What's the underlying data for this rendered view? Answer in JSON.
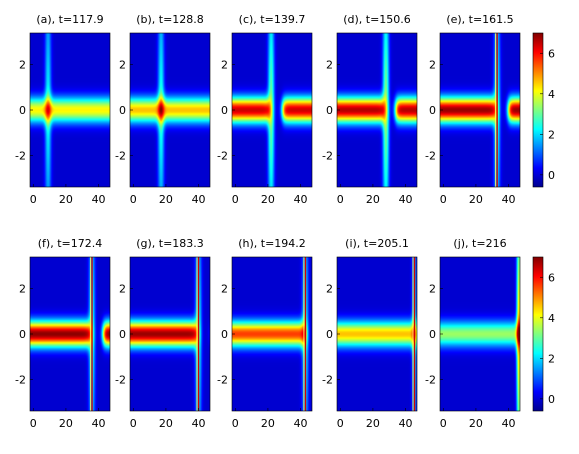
{
  "chart_data": {
    "type": "heatmap",
    "layout": "2x5 grid of panels",
    "x_range": [
      -2,
      47
    ],
    "y_range": [
      -3.4,
      3.4
    ],
    "x_ticks": [
      0,
      20,
      40
    ],
    "y_ticks": [
      2,
      0,
      -2
    ],
    "x_tick_labels": [
      "0",
      "20",
      "40"
    ],
    "y_tick_labels": [
      "2",
      "0",
      "-2"
    ],
    "colorbar": {
      "range": [
        -0.6,
        7.0
      ],
      "ticks": [
        0,
        2,
        4,
        6
      ],
      "tick_labels": [
        "0",
        "2",
        "4",
        "6"
      ],
      "colormap": "jet"
    },
    "panels": [
      {
        "title": "(a), t=117.9",
        "t": 117.9,
        "front_x": 9,
        "front_amp": 2.2,
        "band_start": 0,
        "band_end": 47,
        "band_amp": 4.2,
        "gap_width": 5,
        "gap_start": 6,
        "front_line": false
      },
      {
        "title": "(b), t=128.8",
        "t": 128.8,
        "front_x": 17,
        "front_amp": 2.4,
        "band_start": 0,
        "band_end": 47,
        "band_amp": 4.6,
        "gap_width": 4,
        "gap_start": 15,
        "front_line": false
      },
      {
        "title": "(c), t=139.7",
        "t": 139.7,
        "front_x": 22,
        "front_amp": 3.0,
        "band_start": 0,
        "band_end": 21,
        "band_amp": 6.4,
        "gap_width": 6,
        "gap_start": 23,
        "front_line": false
      },
      {
        "title": "(d), t=150.6",
        "t": 150.6,
        "front_x": 28,
        "front_amp": 3.2,
        "band_start": 0,
        "band_end": 27,
        "band_amp": 6.6,
        "gap_width": 5,
        "gap_start": 29,
        "front_line": false
      },
      {
        "title": "(e), t=161.5",
        "t": 161.5,
        "front_x": 33,
        "front_amp": 7.0,
        "band_start": 0,
        "band_end": 32,
        "band_amp": 6.8,
        "gap_width": 6,
        "gap_start": 34,
        "front_line": true
      },
      {
        "title": "(f), t=172.4",
        "t": 172.4,
        "front_x": 36,
        "front_amp": 7.0,
        "band_start": 0,
        "band_end": 35,
        "band_amp": 6.9,
        "gap_width": 6,
        "gap_start": 37,
        "front_line": true
      },
      {
        "title": "(g), t=183.3",
        "t": 183.3,
        "front_x": 40,
        "front_amp": 7.0,
        "band_start": 0,
        "band_end": 39,
        "band_amp": 6.8,
        "gap_width": 8,
        "gap_start": 41,
        "front_line": true
      },
      {
        "title": "(h), t=194.2",
        "t": 194.2,
        "front_x": 43,
        "front_amp": 6.5,
        "band_start": 0,
        "band_end": 43,
        "band_amp": 5.6,
        "gap_width": 5,
        "gap_start": 45,
        "front_line": true
      },
      {
        "title": "(i), t=205.1",
        "t": 205.1,
        "front_x": 45.5,
        "front_amp": 6.0,
        "band_start": 0,
        "band_end": 46,
        "band_amp": 4.6,
        "gap_width": 0,
        "gap_start": 47,
        "front_line": true
      },
      {
        "title": "(j), t=216",
        "t": 216,
        "front_x": 46.5,
        "front_amp": 4.5,
        "band_start": 0,
        "band_end": 47,
        "band_amp": 3.4,
        "gap_width": 0,
        "gap_start": 47,
        "front_line": false
      }
    ]
  }
}
